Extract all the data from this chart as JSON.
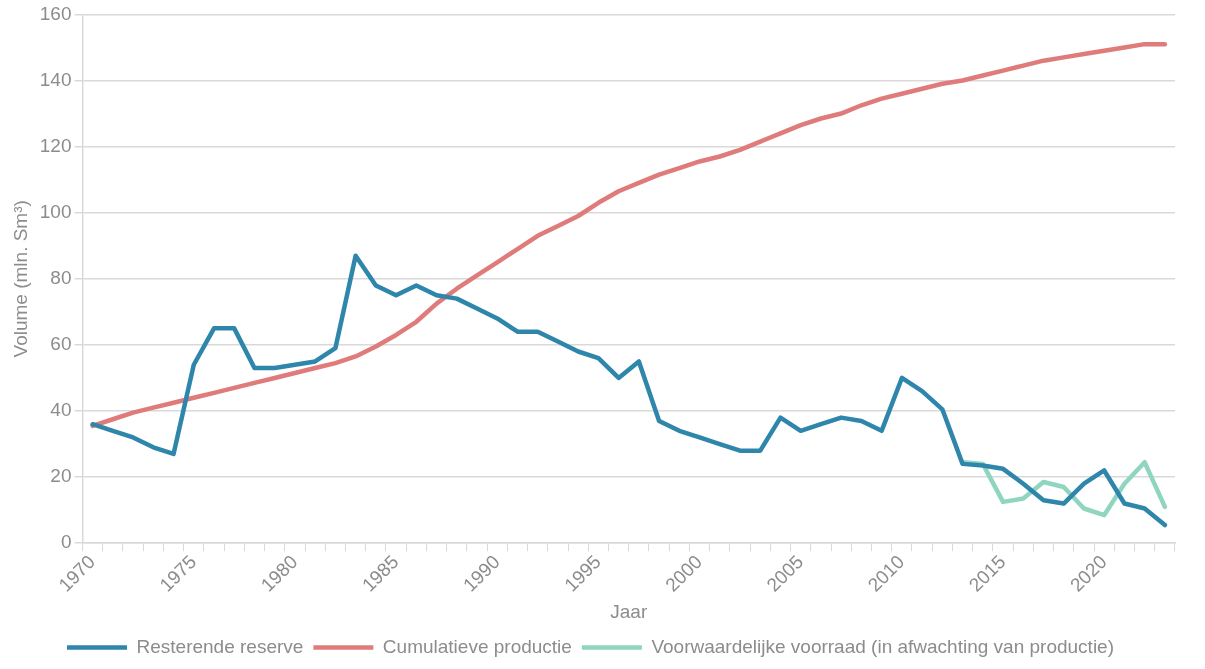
{
  "chart_data": {
    "type": "line",
    "xlabel": "Jaar",
    "ylabel": "Volume (mln. Sm³)",
    "categories": [
      "1970",
      null,
      null,
      null,
      null,
      "1975",
      null,
      null,
      null,
      null,
      "1980",
      null,
      null,
      null,
      null,
      "1985",
      null,
      null,
      null,
      null,
      "1990",
      null,
      null,
      null,
      null,
      "1995",
      null,
      null,
      null,
      null,
      "2000",
      null,
      null,
      null,
      null,
      "2005",
      null,
      null,
      null,
      null,
      "2010",
      null,
      null,
      null,
      null,
      "2015",
      null,
      null,
      null,
      null,
      "2020",
      null,
      null,
      null
    ],
    "series": [
      {
        "name": "Resterende reserve",
        "color": "#2e86ab",
        "values": [
          36,
          34,
          32,
          29,
          27,
          54,
          65,
          65,
          53,
          53,
          54,
          55,
          59,
          87,
          78,
          75,
          78,
          75,
          74,
          71,
          68,
          64,
          64,
          61,
          58,
          56,
          50,
          55,
          37,
          34,
          32,
          30,
          28,
          28,
          38,
          34,
          36,
          38,
          37,
          34,
          50,
          46,
          40.5,
          24,
          23.5,
          22.5,
          18,
          13,
          12,
          18,
          22,
          12,
          10.5,
          5.5
        ]
      },
      {
        "name": "Cumulatieve productie",
        "color": "#e07b7b",
        "values": [
          35.5,
          37.5,
          39.5,
          41,
          42.5,
          44,
          45.5,
          47,
          48.5,
          50,
          51.5,
          53,
          54.5,
          56.5,
          59.5,
          63,
          67,
          72.5,
          77,
          81,
          85,
          89,
          93,
          96,
          99,
          103,
          106.5,
          109,
          111.5,
          113.5,
          115.5,
          117,
          119,
          121.5,
          124,
          126.5,
          128.5,
          130,
          132.5,
          134.5,
          136,
          137.5,
          139,
          140,
          141.5,
          143,
          144.5,
          146,
          147,
          148,
          149,
          150,
          151,
          151
        ]
      },
      {
        "name": "Voorwaardelijke voorraad (in afwachting van productie)",
        "color": "#90d5c0",
        "values": [
          null,
          null,
          null,
          null,
          null,
          null,
          null,
          null,
          null,
          null,
          null,
          null,
          null,
          null,
          null,
          null,
          null,
          null,
          null,
          null,
          null,
          null,
          null,
          null,
          null,
          null,
          null,
          null,
          null,
          null,
          null,
          null,
          null,
          null,
          null,
          null,
          null,
          null,
          null,
          null,
          null,
          null,
          null,
          24.5,
          24,
          12.5,
          13.5,
          18.5,
          17,
          10.5,
          8.5,
          18,
          24.5,
          11
        ]
      }
    ],
    "ylim": [
      0,
      160
    ],
    "yticks": [
      0,
      20,
      40,
      60,
      80,
      100,
      120,
      140,
      160
    ],
    "grid": "y",
    "legend": "bottom",
    "marker": "none",
    "line_style": "solid"
  }
}
